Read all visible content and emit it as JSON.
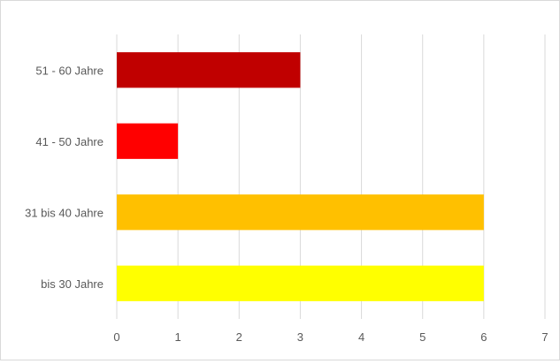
{
  "chart_data": {
    "type": "bar",
    "orientation": "horizontal",
    "categories": [
      "51 - 60 Jahre",
      "41 - 50 Jahre",
      "31 bis 40 Jahre",
      "bis 30 Jahre"
    ],
    "values": [
      3,
      1,
      6,
      6
    ],
    "colors": [
      "#c00000",
      "#ff0000",
      "#ffc000",
      "#ffff00"
    ],
    "title": "",
    "xlabel": "",
    "ylabel": "",
    "xlim": [
      0,
      7
    ],
    "x_ticks": [
      "0",
      "1",
      "2",
      "3",
      "4",
      "5",
      "6",
      "7"
    ],
    "grid": "vertical",
    "legend": "none"
  }
}
